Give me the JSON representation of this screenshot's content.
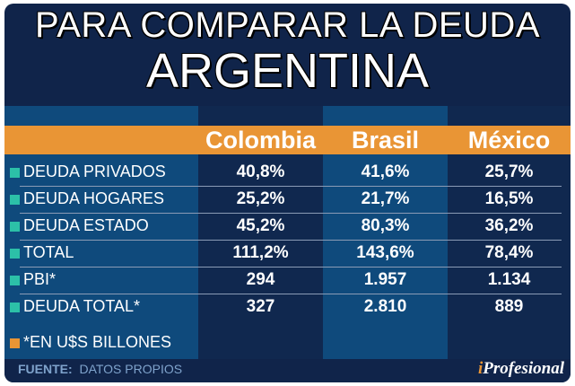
{
  "title_line1": "PARA COMPARAR LA DEUDA",
  "title_line2": "ARGENTINA",
  "colors": {
    "orange": "#e99535",
    "teal": "#2cc0a8",
    "navy": "#10244a",
    "blue": "#0f4a7c"
  },
  "chart_data": {
    "type": "table",
    "columns": [
      "Colombia",
      "Brasil",
      "México"
    ],
    "rows": [
      {
        "label": "DEUDA PRIVADOS",
        "values": [
          "40,8%",
          "41,6%",
          "25,7%"
        ]
      },
      {
        "label": "DEUDA HOGARES",
        "values": [
          "25,2%",
          "21,7%",
          "16,5%"
        ]
      },
      {
        "label": "DEUDA ESTADO",
        "values": [
          "45,2%",
          "80,3%",
          "36,2%"
        ]
      },
      {
        "label": "TOTAL",
        "values": [
          "111,2%",
          "143,6%",
          "78,4%"
        ]
      },
      {
        "label": "PBI*",
        "values": [
          "294",
          "1.957",
          "1.134"
        ]
      },
      {
        "label": "DEUDA TOTAL*",
        "values": [
          "327",
          "2.810",
          "889"
        ]
      }
    ],
    "footnote": "*EN U$S BILLONES"
  },
  "footer": {
    "source_label": "FUENTE:",
    "source": "DATOS PROPIOS",
    "logo_i": "i",
    "logo_rest": "Profesional"
  }
}
